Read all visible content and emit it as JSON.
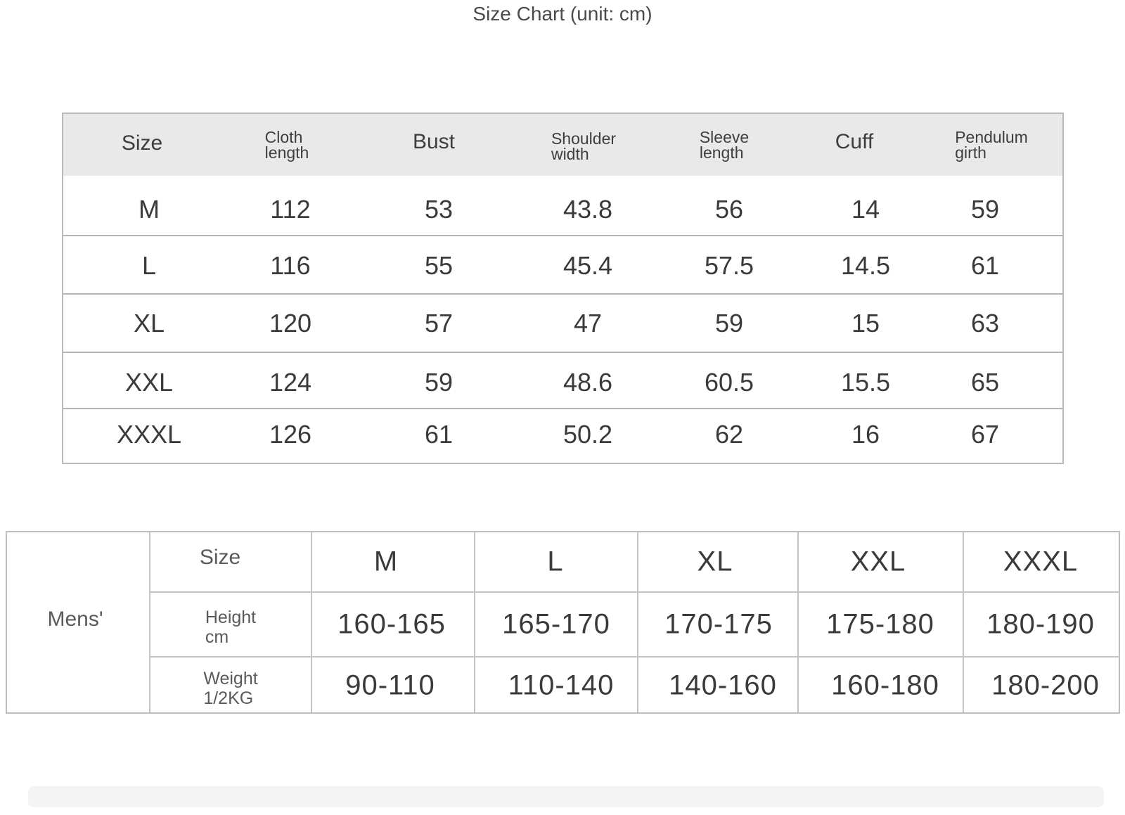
{
  "title": "Size Chart (unit: cm)",
  "size_table": {
    "headers": [
      {
        "line1": "Size",
        "line2": ""
      },
      {
        "line1": "Cloth",
        "line2": "length"
      },
      {
        "line1": "Bust",
        "line2": ""
      },
      {
        "line1": "Shoulder",
        "line2": "width"
      },
      {
        "line1": "Sleeve",
        "line2": "length"
      },
      {
        "line1": "Cuff",
        "line2": ""
      },
      {
        "line1": "Pendulum",
        "line2": "girth"
      }
    ],
    "rows": [
      [
        "M",
        "112",
        "53",
        "43.8",
        "56",
        "14",
        "59"
      ],
      [
        "L",
        "116",
        "55",
        "45.4",
        "57.5",
        "14.5",
        "61"
      ],
      [
        "XL",
        "120",
        "57",
        "47",
        "59",
        "15",
        "63"
      ],
      [
        "XXL",
        "124",
        "59",
        "48.6",
        "60.5",
        "15.5",
        "65"
      ],
      [
        "XXXL",
        "126",
        "61",
        "50.2",
        "62",
        "16",
        "67"
      ]
    ]
  },
  "mens_table": {
    "group_label": "Mens'",
    "size_label": "Size",
    "sizes": [
      "M",
      "L",
      "XL",
      "XXL",
      "XXXL"
    ],
    "height_label": {
      "line1": "Height",
      "line2": "cm"
    },
    "heights": [
      "160-165",
      "165-170",
      "170-175",
      "175-180",
      "180-190"
    ],
    "weight_label": {
      "line1": "Weight",
      "line2": "1/2KG"
    },
    "weights": [
      "90-110",
      "110-140",
      "140-160",
      "160-180",
      "180-200"
    ]
  }
}
